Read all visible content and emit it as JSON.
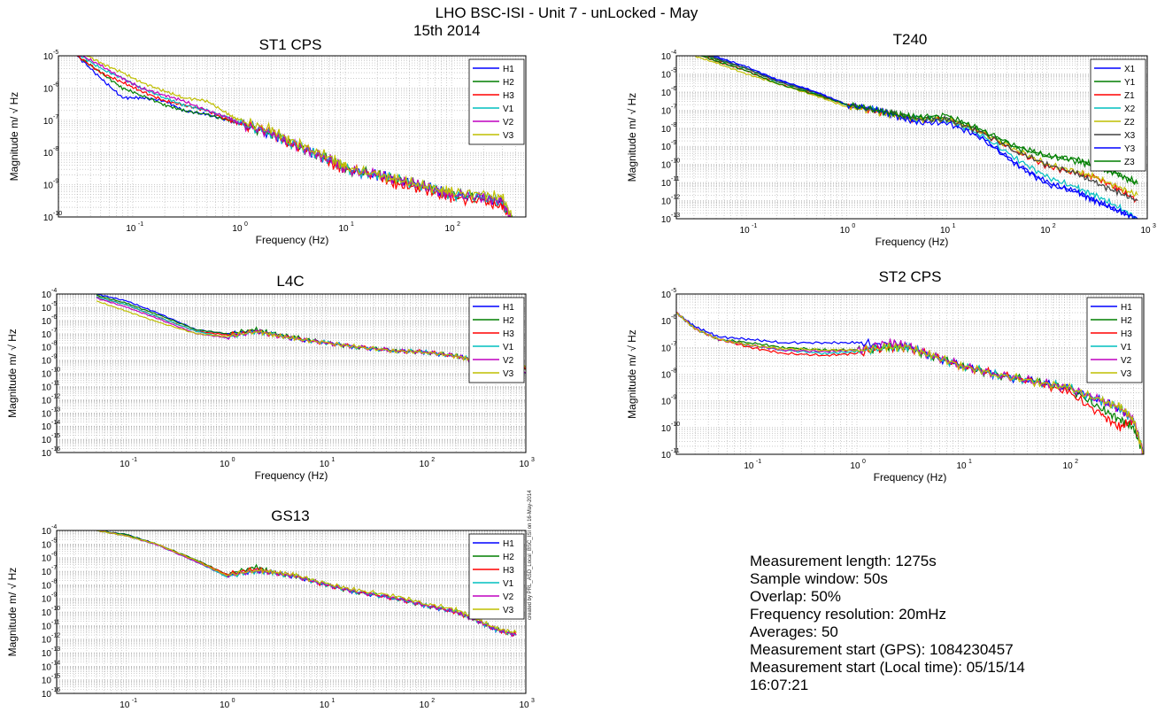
{
  "figure": {
    "title_line1": "LHO BSC-ISI - Unit 7 - unLocked - May",
    "title_line2": "15th 2014",
    "credit": "created by PRL_ASD_Local_BSC_ISI on 16-May-2014"
  },
  "info": {
    "lines": [
      "Measurement length: 1275s",
      "Sample window: 50s",
      "Overlap: 50%",
      "Frequency resolution: 20mHz",
      "Averages: 50",
      "Measurement start (GPS): 1084230457",
      "Measurement start (Local time): 05/15/14",
      "16:07:21"
    ]
  },
  "colors": {
    "blue": "#0000ff",
    "green": "#007f00",
    "red": "#ff0000",
    "cyan": "#00bfbf",
    "magenta": "#bf00bf",
    "olive": "#bfbf00",
    "dark": "#404040"
  },
  "chart_data": [
    {
      "id": "st1",
      "type": "line",
      "title": "ST1 CPS",
      "xlabel": "Frequency (Hz)",
      "ylabel": "Magnitude m/ √ Hz",
      "xscale": "log",
      "yscale": "log",
      "xlim": [
        0.02,
        500
      ],
      "ylim_exp": [
        -10,
        -5
      ],
      "xticks_exp": [
        -1,
        0,
        1,
        2
      ],
      "grid": true,
      "legend": "top-right",
      "x": [
        0.03,
        0.05,
        0.08,
        0.12,
        0.2,
        0.3,
        0.5,
        0.8,
        1,
        2,
        3,
        5,
        8,
        10,
        20,
        30,
        50,
        80,
        100,
        200,
        300,
        400
      ],
      "series": [
        {
          "name": "H1",
          "color": "blue",
          "values": [
            1e-05,
            2e-06,
            5e-07,
            5e-07,
            4e-07,
            2e-07,
            1.5e-07,
            1e-07,
            8e-08,
            4e-08,
            2e-08,
            1e-08,
            5e-09,
            3e-09,
            2e-09,
            1.5e-09,
            1e-09,
            6e-10,
            5e-10,
            4e-10,
            3e-10,
            5e-11
          ]
        },
        {
          "name": "H2",
          "color": "green",
          "values": [
            1e-05,
            3e-06,
            1e-06,
            6e-07,
            3e-07,
            2e-07,
            1.5e-07,
            1e-07,
            8e-08,
            4e-08,
            2e-08,
            1e-08,
            5e-09,
            3e-09,
            2e-09,
            1.5e-09,
            1e-09,
            6e-10,
            5e-10,
            4e-10,
            3e-10,
            5e-11
          ]
        },
        {
          "name": "H3",
          "color": "red",
          "values": [
            1e-05,
            3e-06,
            1.5e-06,
            8e-07,
            4e-07,
            3e-07,
            2e-07,
            1e-07,
            8e-08,
            4e-08,
            2e-08,
            1e-08,
            4e-09,
            3e-09,
            2e-09,
            1e-09,
            8e-10,
            5e-10,
            4e-10,
            3e-10,
            2e-10,
            5e-11
          ]
        },
        {
          "name": "V1",
          "color": "cyan",
          "values": [
            1.2e-05,
            4e-06,
            2e-06,
            1e-06,
            5e-07,
            3e-07,
            2e-07,
            1.2e-07,
            8e-08,
            4e-08,
            2e-08,
            1e-08,
            5e-09,
            3e-09,
            2e-09,
            1.5e-09,
            1e-09,
            6e-10,
            5e-10,
            4e-10,
            3e-10,
            5e-11
          ]
        },
        {
          "name": "V2",
          "color": "magenta",
          "values": [
            1.2e-05,
            5e-06,
            2e-06,
            1e-06,
            6e-07,
            4e-07,
            2e-07,
            1.2e-07,
            8e-08,
            4e-08,
            2e-08,
            1e-08,
            5e-09,
            3e-09,
            2e-09,
            1.5e-09,
            1e-09,
            6e-10,
            5e-10,
            4e-10,
            3e-10,
            5e-11
          ]
        },
        {
          "name": "V3",
          "color": "olive",
          "values": [
            1.5e-05,
            6e-06,
            3e-06,
            1.5e-06,
            8e-07,
            5e-07,
            4e-07,
            1.5e-07,
            1e-07,
            5e-08,
            2.5e-08,
            1.2e-08,
            6e-09,
            3.5e-09,
            2e-09,
            1.5e-09,
            1e-09,
            7e-10,
            6e-10,
            5e-10,
            4e-10,
            6e-11
          ]
        }
      ]
    },
    {
      "id": "t240",
      "type": "line",
      "title": "T240",
      "xlabel": "Frequency (Hz)",
      "ylabel": "Magnitude m/ √ Hz",
      "xscale": "log",
      "yscale": "log",
      "xlim": [
        0.02,
        1000
      ],
      "ylim_exp": [
        -13,
        -4
      ],
      "xticks_exp": [
        -1,
        0,
        1,
        2,
        3
      ],
      "grid": true,
      "legend": "top-right",
      "x": [
        0.03,
        0.05,
        0.1,
        0.2,
        0.5,
        1,
        2,
        3,
        5,
        10,
        20,
        50,
        100,
        200,
        300,
        500,
        800
      ],
      "series": [
        {
          "name": "X1",
          "color": "blue",
          "values": [
            0.0002,
            8e-05,
            2e-05,
            5e-06,
            1e-06,
            2e-07,
            1e-07,
            5e-08,
            3e-08,
            3e-08,
            5e-09,
            1e-10,
            1e-11,
            3e-12,
            1e-12,
            3e-13,
            1e-13
          ]
        },
        {
          "name": "Y1",
          "color": "green",
          "values": [
            0.0002,
            6e-05,
            2e-05,
            4e-06,
            8e-07,
            2e-07,
            1e-07,
            6e-08,
            4e-08,
            4e-08,
            1e-08,
            8e-10,
            3e-10,
            2e-10,
            8e-11,
            3e-11,
            1e-11
          ]
        },
        {
          "name": "Z1",
          "color": "red",
          "values": [
            0.00015,
            5e-05,
            1.5e-05,
            3e-06,
            7e-07,
            2e-07,
            8e-08,
            5e-08,
            3e-08,
            3e-08,
            8e-09,
            5e-10,
            8e-11,
            3e-11,
            2e-11,
            5e-12,
            1e-12
          ]
        },
        {
          "name": "X2",
          "color": "cyan",
          "values": [
            0.0002,
            7e-05,
            2e-05,
            4e-06,
            9e-07,
            2e-07,
            1e-07,
            5e-08,
            3e-08,
            3e-08,
            6e-09,
            2e-10,
            2e-11,
            5e-12,
            2e-12,
            5e-13,
            1e-13
          ]
        },
        {
          "name": "Z2",
          "color": "olive",
          "values": [
            0.0001,
            4e-05,
            1e-05,
            3e-06,
            6e-07,
            1.5e-07,
            8e-08,
            5e-08,
            3e-08,
            3e-08,
            8e-09,
            6e-10,
            1e-10,
            4e-11,
            2e-11,
            6e-12,
            2e-12
          ]
        },
        {
          "name": "X3",
          "color": "dark",
          "values": [
            0.0002,
            7e-05,
            2e-05,
            4e-06,
            9e-07,
            2e-07,
            1e-07,
            6e-08,
            3e-08,
            3e-08,
            8e-09,
            5e-10,
            1e-10,
            3e-11,
            1e-11,
            3e-12,
            1e-12
          ]
        },
        {
          "name": "Y3",
          "color": "blue",
          "values": [
            0.00025,
            9e-05,
            2.5e-05,
            5e-06,
            1e-06,
            2e-07,
            1e-07,
            5e-08,
            2e-08,
            2e-08,
            4e-09,
            1e-10,
            8e-12,
            3e-12,
            1e-12,
            3e-13,
            1e-13
          ]
        },
        {
          "name": "Z3",
          "color": "green",
          "values": [
            0.00015,
            5e-05,
            1.5e-05,
            3e-06,
            7e-07,
            2e-07,
            1e-07,
            6e-08,
            4e-08,
            5e-08,
            1e-08,
            1e-09,
            3e-10,
            1.5e-10,
            8e-11,
            3e-11,
            8e-12
          ]
        }
      ]
    },
    {
      "id": "l4c",
      "type": "line",
      "title": "L4C",
      "xlabel": "Frequency (Hz)",
      "ylabel": "Magnitude m/ √ Hz",
      "xscale": "log",
      "yscale": "log",
      "xlim": [
        0.02,
        1000
      ],
      "ylim_exp": [
        -16,
        -4
      ],
      "xticks_exp": [
        -1,
        0,
        1,
        2,
        3
      ],
      "grid": true,
      "legend": "top-right",
      "x": [
        0.05,
        0.1,
        0.2,
        0.5,
        1,
        2,
        3,
        5,
        10,
        20,
        50,
        100,
        200,
        300,
        500,
        1000
      ],
      "series": [
        {
          "name": "H1",
          "color": "blue",
          "values": [
            0.0001,
            3e-05,
            4e-06,
            2e-07,
            1e-07,
            1.5e-07,
            8e-08,
            4e-08,
            2e-08,
            1e-08,
            5e-09,
            4e-09,
            2e-09,
            1e-09,
            4e-10,
            2e-10
          ]
        },
        {
          "name": "H2",
          "color": "green",
          "values": [
            8e-05,
            2e-05,
            3e-06,
            2e-07,
            1e-07,
            2e-07,
            1e-07,
            5e-08,
            2e-08,
            1e-08,
            5e-09,
            4e-09,
            2e-09,
            1e-09,
            4e-10,
            2e-10
          ]
        },
        {
          "name": "H3",
          "color": "red",
          "values": [
            6e-05,
            1.5e-05,
            2e-06,
            1.5e-07,
            8e-08,
            1.5e-07,
            8e-08,
            4e-08,
            2e-08,
            1e-08,
            5e-09,
            4e-09,
            2e-09,
            1e-09,
            4e-10,
            2e-10
          ]
        },
        {
          "name": "V1",
          "color": "cyan",
          "values": [
            6e-05,
            1.5e-05,
            2e-06,
            1.5e-07,
            5e-08,
            1.5e-07,
            8e-08,
            4e-08,
            2e-08,
            1e-08,
            5e-09,
            4e-09,
            2e-09,
            1e-09,
            3e-10,
            1e-10
          ]
        },
        {
          "name": "V2",
          "color": "magenta",
          "values": [
            5e-05,
            1e-05,
            1.5e-06,
            1e-07,
            5e-08,
            1.5e-07,
            8e-08,
            4e-08,
            2e-08,
            1e-08,
            5e-09,
            4e-09,
            2e-09,
            1e-09,
            3e-10,
            1e-10
          ]
        },
        {
          "name": "V3",
          "color": "olive",
          "values": [
            3e-05,
            5e-06,
            8e-07,
            1e-07,
            6e-08,
            1.5e-07,
            8e-08,
            4e-08,
            2e-08,
            1e-08,
            5e-09,
            4e-09,
            2e-09,
            1e-09,
            4e-10,
            3e-10
          ]
        }
      ]
    },
    {
      "id": "st2",
      "type": "line",
      "title": "ST2 CPS",
      "xlabel": "Frequency (Hz)",
      "ylabel": "Magnitude m/ √ Hz",
      "xscale": "log",
      "yscale": "log",
      "xlim": [
        0.02,
        500
      ],
      "ylim_exp": [
        -11,
        -5
      ],
      "xticks_exp": [
        -1,
        0,
        1,
        2
      ],
      "grid": true,
      "legend": "top-right",
      "x": [
        0.02,
        0.03,
        0.05,
        0.1,
        0.2,
        0.5,
        1,
        2,
        3,
        5,
        10,
        20,
        50,
        100,
        200,
        300,
        400,
        500
      ],
      "series": [
        {
          "name": "H1",
          "color": "blue",
          "values": [
            2e-06,
            6e-07,
            2.5e-07,
            2e-07,
            1.5e-07,
            1.5e-07,
            1.5e-07,
            1.2e-07,
            1e-07,
            5e-08,
            2e-08,
            1e-08,
            5e-09,
            3e-09,
            1e-09,
            5e-10,
            2e-10,
            1e-11
          ]
        },
        {
          "name": "H2",
          "color": "green",
          "values": [
            2e-06,
            5e-07,
            2e-07,
            1.5e-07,
            1e-07,
            8e-08,
            8e-08,
            1e-07,
            1e-07,
            5e-08,
            2e-08,
            1e-08,
            5e-09,
            3e-09,
            5e-10,
            2e-10,
            1e-10,
            1e-11
          ]
        },
        {
          "name": "H3",
          "color": "red",
          "values": [
            2e-06,
            5e-07,
            2e-07,
            1e-07,
            6e-08,
            5e-08,
            6e-08,
            1e-07,
            1e-07,
            5e-08,
            2e-08,
            1e-08,
            5e-09,
            2e-09,
            3e-10,
            1e-10,
            2e-10,
            1e-11
          ]
        },
        {
          "name": "V1",
          "color": "cyan",
          "values": [
            2e-06,
            5e-07,
            2e-07,
            1.2e-07,
            8e-08,
            6e-08,
            7e-08,
            1e-07,
            1e-07,
            5e-08,
            2e-08,
            1e-08,
            5e-09,
            3e-09,
            1e-09,
            5e-10,
            2e-10,
            1e-11
          ]
        },
        {
          "name": "V2",
          "color": "magenta",
          "values": [
            2e-06,
            5e-07,
            2e-07,
            1.2e-07,
            8e-08,
            7e-08,
            8e-08,
            1.5e-07,
            1.2e-07,
            5e-08,
            2e-08,
            1e-08,
            5e-09,
            3e-09,
            1e-09,
            5e-10,
            2e-10,
            1e-11
          ]
        },
        {
          "name": "V3",
          "color": "olive",
          "values": [
            2e-06,
            5e-07,
            2e-07,
            1.2e-07,
            9e-08,
            8e-08,
            8e-08,
            1e-07,
            1e-07,
            5e-08,
            2e-08,
            1e-08,
            5e-09,
            3e-09,
            1e-09,
            6e-10,
            2e-10,
            1e-11
          ]
        }
      ]
    },
    {
      "id": "gs13",
      "type": "line",
      "title": "GS13",
      "xlabel": "",
      "ylabel": "Magnitude m/ √ Hz",
      "xscale": "log",
      "yscale": "log",
      "xlim": [
        0.02,
        1000
      ],
      "ylim_exp": [
        -16,
        -4
      ],
      "xticks_exp": [
        -1,
        0,
        1,
        2,
        3
      ],
      "grid": true,
      "legend": "top-right",
      "x": [
        0.05,
        0.1,
        0.2,
        0.5,
        1,
        2,
        3,
        5,
        10,
        20,
        50,
        100,
        200,
        300,
        500,
        800
      ],
      "series": [
        {
          "name": "H1",
          "color": "blue",
          "values": [
            0.0001,
            5e-05,
            1e-05,
            5e-07,
            5e-08,
            1e-07,
            7e-08,
            4e-08,
            1e-08,
            3e-09,
            1e-09,
            3e-10,
            1e-10,
            3e-11,
            5e-12,
            2e-12
          ]
        },
        {
          "name": "H2",
          "color": "green",
          "values": [
            0.0001,
            5e-05,
            1e-05,
            7e-07,
            6e-08,
            2e-07,
            8e-08,
            4e-08,
            1e-08,
            3e-09,
            1e-09,
            3e-10,
            1e-10,
            3e-11,
            5e-12,
            2e-12
          ]
        },
        {
          "name": "H3",
          "color": "red",
          "values": [
            0.0001,
            4e-05,
            1e-05,
            6e-07,
            6e-08,
            1.5e-07,
            8e-08,
            4e-08,
            1e-08,
            3e-09,
            1e-09,
            3e-10,
            1e-10,
            3e-11,
            5e-12,
            2e-12
          ]
        },
        {
          "name": "V1",
          "color": "cyan",
          "values": [
            0.0001,
            4e-05,
            9e-06,
            5e-07,
            4e-08,
            1e-07,
            7e-08,
            4e-08,
            1e-08,
            3e-09,
            1e-09,
            3e-10,
            1e-10,
            3e-11,
            5e-12,
            2e-12
          ]
        },
        {
          "name": "V2",
          "color": "magenta",
          "values": [
            0.0001,
            4e-05,
            9e-06,
            5e-07,
            5e-08,
            1e-07,
            8e-08,
            4e-08,
            1e-08,
            3e-09,
            1e-09,
            3e-10,
            1e-10,
            3e-11,
            5e-12,
            2e-12
          ]
        },
        {
          "name": "V3",
          "color": "olive",
          "values": [
            0.0001,
            4e-05,
            1e-05,
            6e-07,
            5e-08,
            1.2e-07,
            9e-08,
            5e-08,
            1.2e-08,
            4e-09,
            1.5e-09,
            4e-10,
            1.5e-10,
            4e-11,
            6e-12,
            3e-12
          ]
        }
      ]
    }
  ]
}
